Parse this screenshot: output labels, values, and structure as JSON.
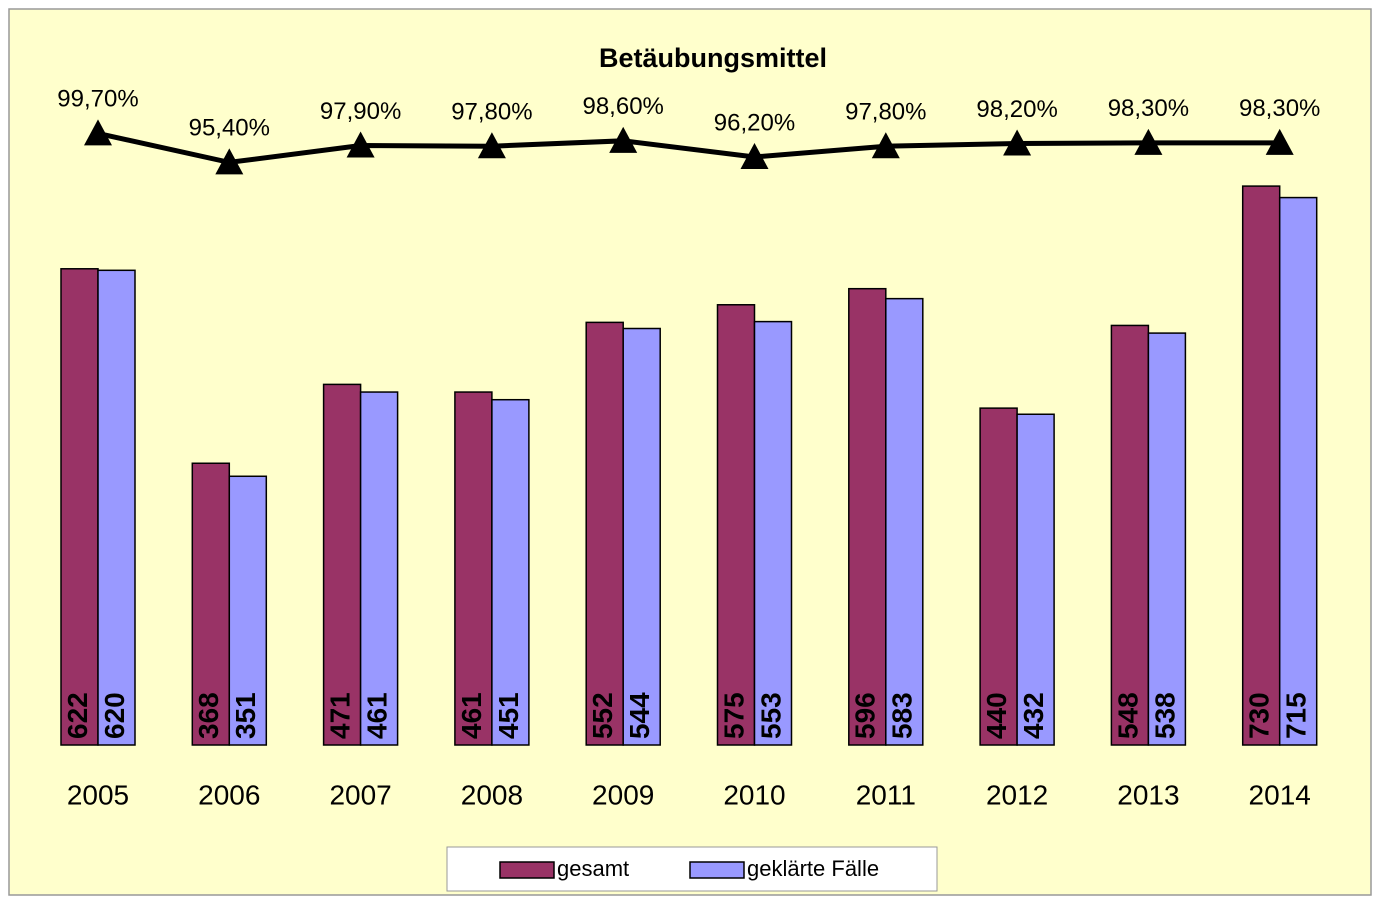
{
  "chart_data": {
    "type": "bar",
    "title": "Betäubungsmittel",
    "categories": [
      "2005",
      "2006",
      "2007",
      "2008",
      "2009",
      "2010",
      "2011",
      "2012",
      "2013",
      "2014"
    ],
    "ylim": [
      0,
      960
    ],
    "y2lim": [
      9,
      118
    ],
    "series": [
      {
        "name": "gesamt",
        "color": "#993366",
        "values": [
          622,
          368,
          471,
          461,
          552,
          575,
          596,
          440,
          548,
          730
        ]
      },
      {
        "name": "geklärte Fälle",
        "color": "#9999ff",
        "values": [
          620,
          351,
          461,
          451,
          544,
          553,
          583,
          432,
          538,
          715
        ]
      },
      {
        "type": "line",
        "axis": "y2",
        "color": "#000000",
        "values": [
          99.7,
          95.4,
          97.9,
          97.8,
          98.6,
          96.2,
          97.8,
          98.2,
          98.3,
          98.3
        ],
        "value_labels": [
          "99,70%",
          "95,40%",
          "97,90%",
          "97,80%",
          "98,60%",
          "96,20%",
          "97,80%",
          "98,20%",
          "98,30%",
          "98,30%"
        ]
      }
    ],
    "legend": "bottom"
  }
}
